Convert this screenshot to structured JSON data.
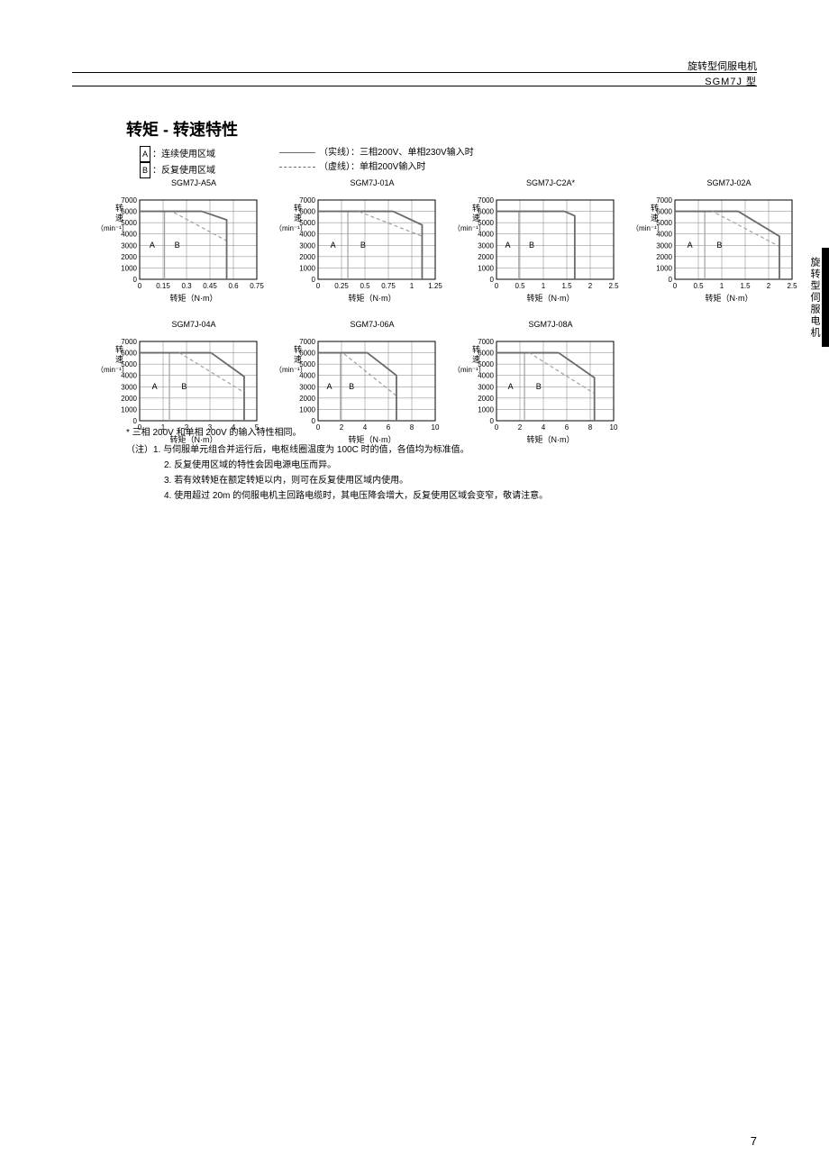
{
  "header": {
    "category": "旋转型伺服电机",
    "model": "SGM7J 型"
  },
  "title": "转矩 - 转速特性",
  "legend": {
    "a_label": "A",
    "a_text": "：连续使用区域",
    "b_label": "B",
    "b_text": "：反复使用区域",
    "solid_text": "（实线）：三相200V、单相230V输入时",
    "dash_text": "（虚线）：单相200V输入时"
  },
  "side_tab": "旋转型伺服电机",
  "page_number": "7",
  "axis": {
    "y_label_1": "转",
    "y_label_2": "速",
    "y_unit": "（min⁻¹）",
    "x_label": "转矩（N·m）",
    "y_ticks": [
      0,
      1000,
      2000,
      3000,
      4000,
      5000,
      6000,
      7000
    ],
    "y_min": 0,
    "y_max": 7000
  },
  "chart_style": {
    "width": 130,
    "height": 88,
    "grid_color": "#808080",
    "border_color": "#000000",
    "solid_color": "#6a6a6a",
    "dash_color": "#a0a0a0",
    "region_label_font": 9,
    "tick_font": 8,
    "title_font": 9
  },
  "charts": [
    {
      "title": "SGM7J-A5A",
      "x_ticks": [
        0,
        0.15,
        0.3,
        0.45,
        0.6,
        0.75
      ],
      "x_max": 0.75,
      "a_line": [
        [
          0.159,
          0
        ],
        [
          0.159,
          6000
        ]
      ],
      "b_solid": [
        [
          0.557,
          0
        ],
        [
          0.557,
          5250
        ],
        [
          0.398,
          6000
        ]
      ],
      "b_dash": [
        [
          0.557,
          0
        ],
        [
          0.557,
          3400
        ],
        [
          0.205,
          6000
        ]
      ],
      "top_solid": [
        [
          0,
          6000
        ],
        [
          0.398,
          6000
        ]
      ],
      "top_dash": [
        [
          0,
          6000
        ],
        [
          0.205,
          6000
        ]
      ],
      "a_pos": [
        0.08,
        2800
      ],
      "b_pos": [
        0.24,
        2800
      ]
    },
    {
      "title": "SGM7J-01A",
      "x_ticks": [
        0,
        0.25,
        0.5,
        0.75,
        1,
        1.25
      ],
      "x_max": 1.25,
      "a_line": [
        [
          0.318,
          0
        ],
        [
          0.318,
          6000
        ]
      ],
      "b_solid": [
        [
          1.11,
          0
        ],
        [
          1.11,
          4800
        ],
        [
          0.8,
          6000
        ]
      ],
      "b_dash": [
        [
          1.11,
          0
        ],
        [
          1.11,
          3800
        ],
        [
          0.43,
          6000
        ]
      ],
      "top_solid": [
        [
          0,
          6000
        ],
        [
          0.8,
          6000
        ]
      ],
      "top_dash": [
        [
          0,
          6000
        ],
        [
          0.43,
          6000
        ]
      ],
      "a_pos": [
        0.16,
        2800
      ],
      "b_pos": [
        0.48,
        2800
      ]
    },
    {
      "title": "SGM7J-C2A*",
      "x_ticks": [
        0,
        0.5,
        1,
        1.5,
        2,
        2.5
      ],
      "x_max": 2.5,
      "a_line": [
        [
          0.477,
          0
        ],
        [
          0.477,
          6000
        ]
      ],
      "b_solid": [
        [
          1.67,
          0
        ],
        [
          1.67,
          5600
        ],
        [
          1.45,
          6000
        ]
      ],
      "b_dash": null,
      "top_solid": [
        [
          0,
          6000
        ],
        [
          1.45,
          6000
        ]
      ],
      "top_dash": null,
      "a_pos": [
        0.24,
        2800
      ],
      "b_pos": [
        0.75,
        2800
      ]
    },
    {
      "title": "SGM7J-02A",
      "x_ticks": [
        0,
        0.5,
        1,
        1.5,
        2,
        2.5
      ],
      "x_max": 2.5,
      "a_line": [
        [
          0.637,
          0
        ],
        [
          0.637,
          6000
        ]
      ],
      "b_solid": [
        [
          2.23,
          0
        ],
        [
          2.23,
          3800
        ],
        [
          1.35,
          6000
        ]
      ],
      "b_dash": [
        [
          2.23,
          0
        ],
        [
          2.23,
          2900
        ],
        [
          0.8,
          6000
        ]
      ],
      "top_solid": [
        [
          0,
          6000
        ],
        [
          1.35,
          6000
        ]
      ],
      "top_dash": [
        [
          0,
          6000
        ],
        [
          0.8,
          6000
        ]
      ],
      "a_pos": [
        0.32,
        2800
      ],
      "b_pos": [
        0.95,
        2800
      ]
    },
    {
      "title": "SGM7J-04A",
      "x_ticks": [
        0,
        1,
        2,
        3,
        4,
        5
      ],
      "x_max": 5,
      "a_line": [
        [
          1.27,
          0
        ],
        [
          1.27,
          6000
        ]
      ],
      "b_solid": [
        [
          4.46,
          0
        ],
        [
          4.46,
          3900
        ],
        [
          3.05,
          6000
        ]
      ],
      "b_dash": [
        [
          4.46,
          0
        ],
        [
          4.46,
          2500
        ],
        [
          1.7,
          6000
        ]
      ],
      "top_solid": [
        [
          0,
          6000
        ],
        [
          3.05,
          6000
        ]
      ],
      "top_dash": [
        [
          0,
          6000
        ],
        [
          1.7,
          6000
        ]
      ],
      "a_pos": [
        0.64,
        2800
      ],
      "b_pos": [
        1.9,
        2800
      ]
    },
    {
      "title": "SGM7J-06A",
      "x_ticks": [
        0,
        2,
        4,
        6,
        8,
        10
      ],
      "x_max": 10,
      "a_line": [
        [
          1.91,
          0
        ],
        [
          1.91,
          6000
        ]
      ],
      "b_solid": [
        [
          6.69,
          0
        ],
        [
          6.69,
          4000
        ],
        [
          4.2,
          6000
        ]
      ],
      "b_dash": [
        [
          6.69,
          0
        ],
        [
          6.69,
          2200
        ],
        [
          2.1,
          6000
        ]
      ],
      "top_solid": [
        [
          0,
          6000
        ],
        [
          4.2,
          6000
        ]
      ],
      "top_dash": [
        [
          0,
          6000
        ],
        [
          2.1,
          6000
        ]
      ],
      "a_pos": [
        0.96,
        2800
      ],
      "b_pos": [
        2.86,
        2800
      ]
    },
    {
      "title": "SGM7J-08A",
      "x_ticks": [
        0,
        2,
        4,
        6,
        8,
        10
      ],
      "x_max": 10,
      "a_line": [
        [
          2.39,
          0
        ],
        [
          2.39,
          6000
        ]
      ],
      "b_solid": [
        [
          8.36,
          0
        ],
        [
          8.36,
          3800
        ],
        [
          5.3,
          6000
        ]
      ],
      "b_dash": [
        [
          8.36,
          0
        ],
        [
          8.36,
          2400
        ],
        [
          2.8,
          6000
        ]
      ],
      "top_solid": [
        [
          0,
          6000
        ],
        [
          5.3,
          6000
        ]
      ],
      "top_dash": [
        [
          0,
          6000
        ],
        [
          2.8,
          6000
        ]
      ],
      "a_pos": [
        1.2,
        2800
      ],
      "b_pos": [
        3.6,
        2800
      ]
    }
  ],
  "footnotes": {
    "star": "* 三相 200V 和单相 200V 的输入特性相同。",
    "intro": "（注）1. 与伺服单元组合并运行后，电枢线圈温度为 100C 时的值，各值均为标准值。",
    "n2": "2. 反复使用区域的特性会因电源电压而异。",
    "n3": "3. 若有效转矩在额定转矩以内，则可在反复使用区域内使用。",
    "n4": "4. 使用超过 20m 的伺服电机主回路电缆时，其电压降会增大，反复使用区域会变窄，敬请注意。"
  }
}
